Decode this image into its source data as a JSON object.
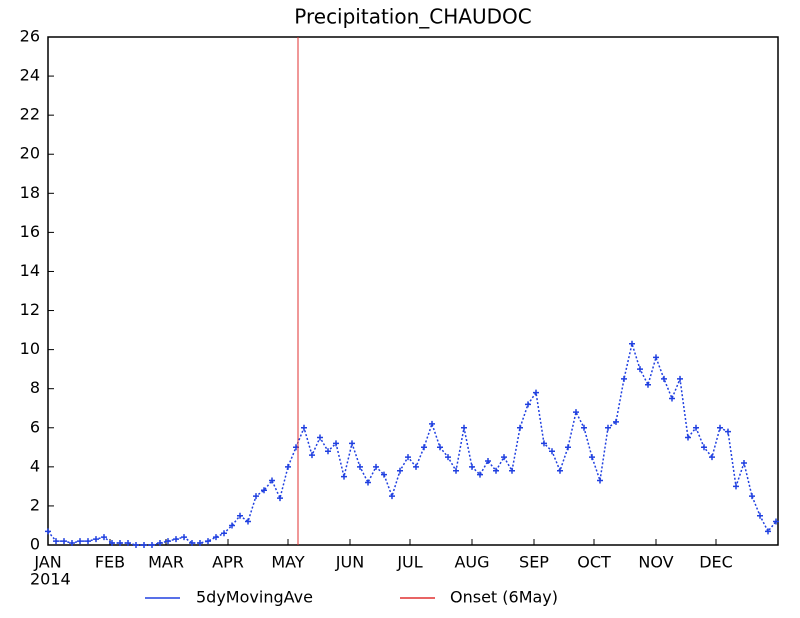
{
  "chart_data": {
    "type": "line",
    "title": "Precipitation_CHAUDOC",
    "x": [
      1,
      5,
      9,
      13,
      17,
      21,
      25,
      29,
      33,
      37,
      41,
      45,
      49,
      53,
      57,
      61,
      65,
      69,
      73,
      77,
      81,
      85,
      89,
      93,
      97,
      101,
      105,
      109,
      113,
      117,
      121,
      125,
      129,
      133,
      137,
      141,
      145,
      149,
      153,
      157,
      161,
      165,
      169,
      173,
      177,
      181,
      185,
      189,
      193,
      197,
      201,
      205,
      209,
      213,
      217,
      221,
      225,
      229,
      233,
      237,
      241,
      245,
      249,
      253,
      257,
      261,
      265,
      269,
      273,
      277,
      281,
      285,
      289,
      293,
      297,
      301,
      305,
      309,
      313,
      317,
      321,
      325,
      329,
      333,
      337,
      341,
      345,
      349,
      353,
      357,
      361,
      365
    ],
    "series": [
      {
        "name": "5dyMovingAve",
        "color": "#2040e0",
        "values": [
          0.7,
          0.2,
          0.2,
          0.1,
          0.2,
          0.2,
          0.3,
          0.4,
          0.1,
          0.1,
          0.1,
          0,
          0,
          0,
          0.1,
          0.2,
          0.3,
          0.4,
          0.1,
          0.1,
          0.2,
          0.4,
          0.6,
          1.0,
          1.5,
          1.2,
          2.5,
          2.8,
          3.3,
          2.4,
          4.0,
          5.0,
          6.0,
          4.6,
          5.5,
          4.8,
          5.2,
          3.5,
          5.2,
          4.0,
          3.2,
          4.0,
          3.6,
          2.5,
          3.8,
          4.5,
          4.0,
          5.0,
          6.2,
          5.0,
          4.5,
          3.8,
          6.0,
          4.0,
          3.6,
          4.3,
          3.8,
          4.5,
          3.8,
          6.0,
          7.2,
          7.8,
          5.2,
          4.8,
          3.8,
          5.0,
          6.8,
          6.0,
          4.5,
          3.3,
          6.0,
          6.3,
          8.5,
          10.3,
          9.0,
          8.2,
          9.6,
          8.5,
          7.5,
          8.5,
          5.5,
          6.0,
          5.0,
          4.5,
          6.0,
          5.8,
          3.0,
          4.2,
          2.5,
          1.5,
          0.7,
          1.2
        ]
      }
    ],
    "onset": {
      "name": "Onset (6May)",
      "x": 126,
      "color": "#e03030"
    },
    "xlim": [
      1,
      366
    ],
    "xticks": [
      {
        "value": 1,
        "label": "JAN"
      },
      {
        "value": 32,
        "label": "FEB"
      },
      {
        "value": 60,
        "label": "MAR"
      },
      {
        "value": 91,
        "label": "APR"
      },
      {
        "value": 121,
        "label": "MAY"
      },
      {
        "value": 152,
        "label": "JUN"
      },
      {
        "value": 182,
        "label": "JUL"
      },
      {
        "value": 213,
        "label": "AUG"
      },
      {
        "value": 244,
        "label": "SEP"
      },
      {
        "value": 274,
        "label": "OCT"
      },
      {
        "value": 305,
        "label": "NOV"
      },
      {
        "value": 335,
        "label": "DEC"
      }
    ],
    "year_label": "2014",
    "ylim": [
      0,
      26
    ],
    "yticks": [
      0,
      2,
      4,
      6,
      8,
      10,
      12,
      14,
      16,
      18,
      20,
      22,
      24,
      26
    ]
  }
}
